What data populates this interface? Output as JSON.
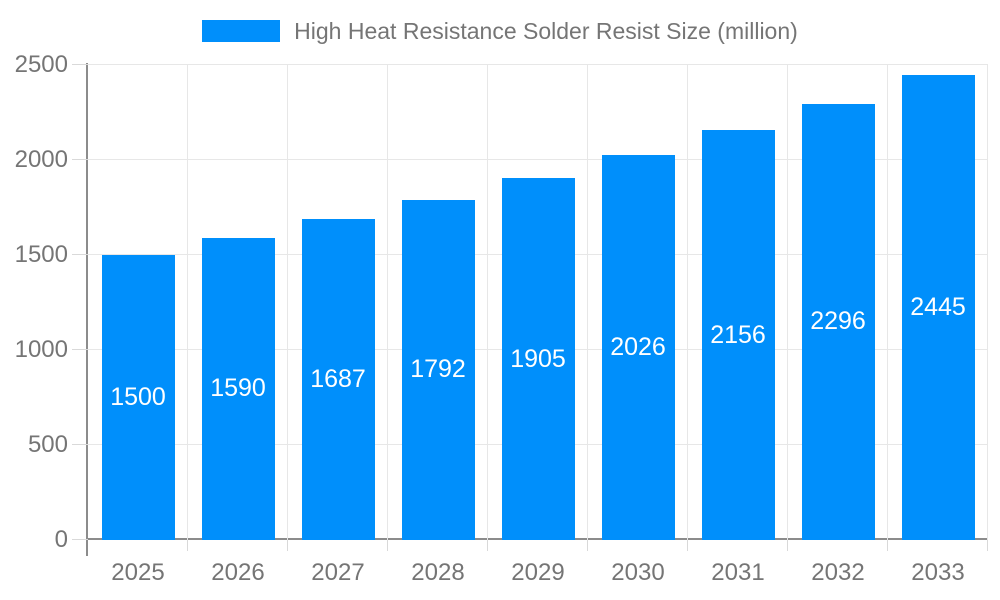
{
  "chart_data": {
    "type": "bar",
    "title": "High Heat Resistance Solder Resist Size (million)",
    "categories": [
      "2025",
      "2026",
      "2027",
      "2028",
      "2029",
      "2030",
      "2031",
      "2032",
      "2033"
    ],
    "values": [
      1500,
      1590,
      1687,
      1792,
      1905,
      2026,
      2156,
      2296,
      2445
    ],
    "series": [
      {
        "name": "High Heat Resistance Solder Resist Size (million)",
        "values": [
          1500,
          1590,
          1687,
          1792,
          1905,
          2026,
          2156,
          2296,
          2445
        ]
      }
    ],
    "xlabel": "",
    "ylabel": "",
    "ylim": [
      0,
      2500
    ],
    "yticks": [
      0,
      500,
      1000,
      1500,
      2000,
      2500
    ],
    "grid": true,
    "legend_position": "top",
    "value_labels": true
  },
  "colors": {
    "bar": "#008FFB",
    "grid": "#e7e7e7",
    "tick": "#d9d9d9",
    "axis": "#8c8c8c",
    "text": "#757575",
    "value_text": "#ffffff"
  }
}
